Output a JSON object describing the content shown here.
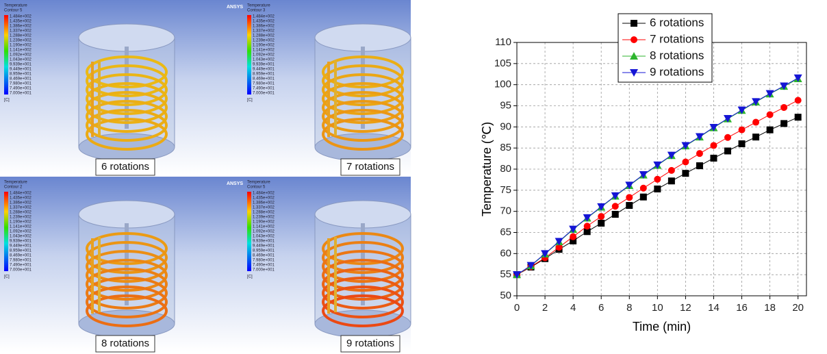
{
  "colorbar": {
    "title": "Temperature",
    "ticks": [
      "1.484e+002",
      "1.435e+002",
      "1.386e+002",
      "1.337e+002",
      "1.288e+002",
      "1.239e+002",
      "1.190e+002",
      "1.141e+002",
      "1.092e+002",
      "1.043e+002",
      "9.939e+001",
      "9.449e+001",
      "8.959e+001",
      "8.469e+001",
      "7.980e+001",
      "7.490e+001",
      "7.000e+001"
    ],
    "unit": "[C]"
  },
  "logo": "ANSYS",
  "panels": [
    {
      "contour": "Contour 5",
      "label": "6 rotations"
    },
    {
      "contour": "Contour 3",
      "label": "7 rotations"
    },
    {
      "contour": "Contour 2",
      "label": "8 rotations"
    },
    {
      "contour": "Contour 5",
      "label": "9 rotations"
    }
  ],
  "chart_data": {
    "type": "line",
    "x_label": "Time (min)",
    "y_label": "Temperature (℃)",
    "x": [
      0,
      1,
      2,
      3,
      4,
      5,
      6,
      7,
      8,
      9,
      10,
      11,
      12,
      13,
      14,
      15,
      16,
      17,
      18,
      19,
      20
    ],
    "series": [
      {
        "name": "6 rotations",
        "color": "#000000",
        "marker": "square",
        "values": [
          55,
          56.8,
          58.8,
          61,
          63,
          65.2,
          67.2,
          69.3,
          71.4,
          73.4,
          75.3,
          77.2,
          79,
          80.8,
          82.6,
          84.3,
          86,
          87.6,
          89.3,
          90.8,
          92.3
        ]
      },
      {
        "name": "7 rotations",
        "color": "#ff0000",
        "marker": "circle",
        "values": [
          55,
          56.9,
          59,
          61.5,
          64,
          66.5,
          68.8,
          71.2,
          73.3,
          75.5,
          77.6,
          79.7,
          81.7,
          83.7,
          85.6,
          87.5,
          89.3,
          91.1,
          92.9,
          94.6,
          96.3
        ]
      },
      {
        "name": "8 rotations",
        "color": "#2db52d",
        "marker": "triangle-up",
        "values": [
          55,
          57.1,
          59.9,
          62.8,
          65.7,
          68.4,
          71,
          73.6,
          76.1,
          78.6,
          80.9,
          83.2,
          85.5,
          87.6,
          89.8,
          91.9,
          93.9,
          95.9,
          97.8,
          99.6,
          101.4
        ]
      },
      {
        "name": "9 rotations",
        "color": "#1515d5",
        "marker": "triangle-down",
        "values": [
          55,
          57.2,
          60,
          62.9,
          65.8,
          68.5,
          71.1,
          73.7,
          76.2,
          78.7,
          81,
          83.3,
          85.6,
          87.7,
          89.9,
          92,
          94,
          96,
          97.9,
          99.7,
          101.6
        ]
      }
    ],
    "xlim": [
      0,
      20.6
    ],
    "xticks": [
      0,
      2,
      4,
      6,
      8,
      10,
      12,
      14,
      16,
      18,
      20
    ],
    "ylim": [
      50,
      110
    ],
    "yticks": [
      50,
      55,
      60,
      65,
      70,
      75,
      80,
      85,
      90,
      95,
      100,
      105,
      110
    ],
    "grid": true,
    "legend": "top"
  }
}
